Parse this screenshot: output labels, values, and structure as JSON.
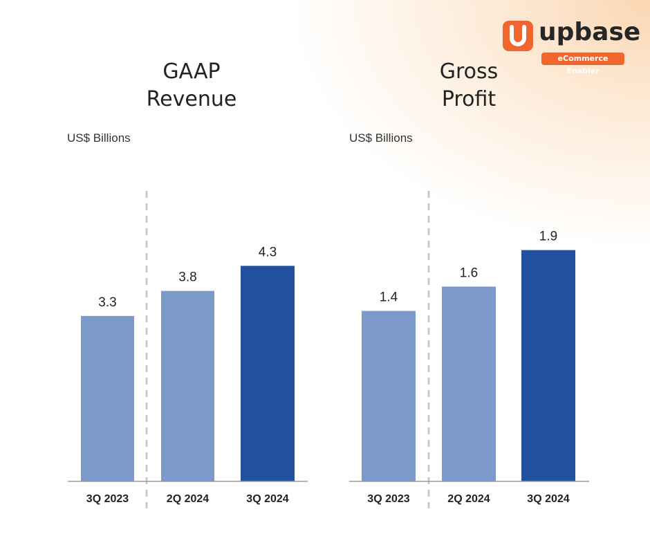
{
  "brand": {
    "name": "upbase",
    "tagline": "eCommerce Enabler",
    "color": "#f0662f"
  },
  "chart_data": [
    {
      "type": "bar",
      "title": "GAAP Revenue",
      "title_lines": [
        "GAAP",
        "Revenue"
      ],
      "ylabel": "US$ Billions",
      "categories": [
        "3Q 2023",
        "2Q 2024",
        "3Q 2024"
      ],
      "values": [
        3.3,
        3.8,
        4.3
      ],
      "value_labels": [
        "3.3",
        "3.8",
        "4.3"
      ],
      "colors": [
        "#7b99c9",
        "#7b99c9",
        "#21509e"
      ],
      "ylim": [
        0,
        8.5
      ],
      "grid": false,
      "divider_after_index": 0
    },
    {
      "type": "bar",
      "title": "Gross Profit",
      "title_lines": [
        "Gross",
        "Profit"
      ],
      "ylabel": "US$ Billions",
      "categories": [
        "3Q 2023",
        "2Q 2024",
        "3Q 2024"
      ],
      "values": [
        1.4,
        1.6,
        1.9
      ],
      "value_labels": [
        "1.4",
        "1.6",
        "1.9"
      ],
      "colors": [
        "#7b99c9",
        "#7b99c9",
        "#21509e"
      ],
      "ylim": [
        0,
        3.5
      ],
      "grid": false,
      "divider_after_index": 0
    }
  ]
}
